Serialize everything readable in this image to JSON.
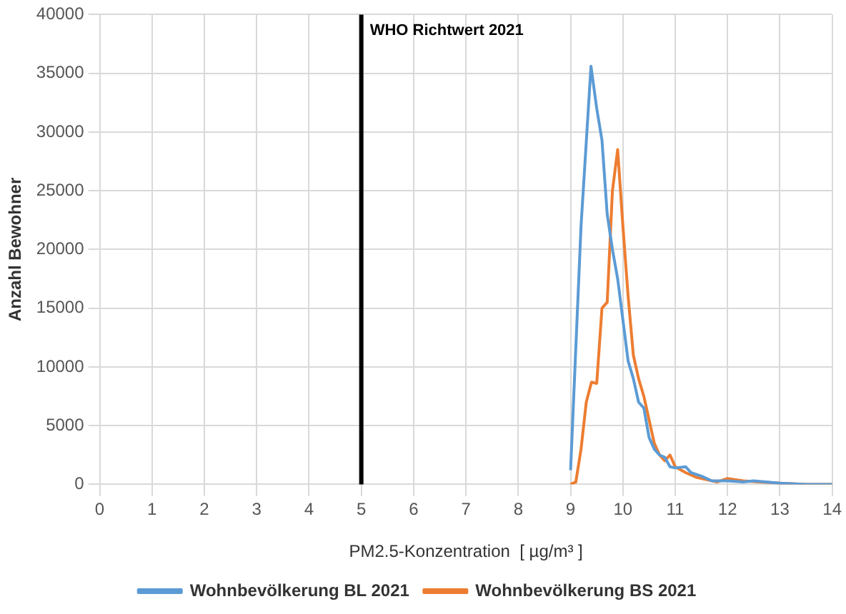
{
  "chart_data": {
    "type": "line",
    "xlabel": "PM2.5-Konzentration  [ µg/m³ ]",
    "ylabel": "Anzahl Bewohner",
    "xlim": [
      0,
      14
    ],
    "xticks": [
      0,
      1,
      2,
      3,
      4,
      5,
      6,
      7,
      8,
      9,
      10,
      11,
      12,
      13,
      14
    ],
    "ylim": [
      0,
      40000
    ],
    "yticks": [
      0,
      5000,
      10000,
      15000,
      20000,
      25000,
      30000,
      35000,
      40000
    ],
    "grid": true,
    "legend": "bottom",
    "marker": "none",
    "ref_lines": [
      {
        "axis": "x",
        "value": 5,
        "label": "WHO Richtwert 2021",
        "color": "#000000"
      }
    ],
    "series": [
      {
        "name": "Wohnbevölkerung BL 2021",
        "color": "#5b9bd5",
        "x": [
          9.0,
          9.2,
          9.39,
          9.5,
          9.6,
          9.7,
          9.8,
          9.9,
          10.0,
          10.1,
          10.2,
          10.3,
          10.4,
          10.5,
          10.6,
          10.7,
          10.8,
          10.9,
          11.0,
          11.2,
          11.3,
          11.5,
          11.7,
          12.0,
          12.3,
          12.5,
          13.0,
          13.5,
          14.0
        ],
        "values": [
          1200,
          22000,
          35600,
          32000,
          29300,
          23000,
          20000,
          17500,
          14000,
          10500,
          9000,
          7000,
          6500,
          4000,
          3000,
          2500,
          2300,
          1500,
          1400,
          1500,
          1000,
          700,
          300,
          300,
          200,
          300,
          100,
          0,
          0
        ]
      },
      {
        "name": "Wohnbevölkerung BS 2021",
        "color": "#ed7d31",
        "x": [
          9.0,
          9.1,
          9.2,
          9.3,
          9.4,
          9.5,
          9.6,
          9.7,
          9.8,
          9.9,
          10.0,
          10.1,
          10.2,
          10.3,
          10.4,
          10.5,
          10.6,
          10.7,
          10.8,
          10.9,
          11.0,
          11.2,
          11.4,
          11.6,
          11.8,
          12.0,
          12.3,
          12.6,
          13.0,
          13.5,
          14.0
        ],
        "values": [
          0,
          200,
          3000,
          7000,
          8700,
          8600,
          15000,
          15500,
          25000,
          28500,
          22000,
          16000,
          11000,
          9000,
          7500,
          5500,
          3500,
          2500,
          2000,
          2500,
          1500,
          1000,
          600,
          400,
          200,
          500,
          300,
          200,
          100,
          0,
          0
        ]
      }
    ]
  }
}
